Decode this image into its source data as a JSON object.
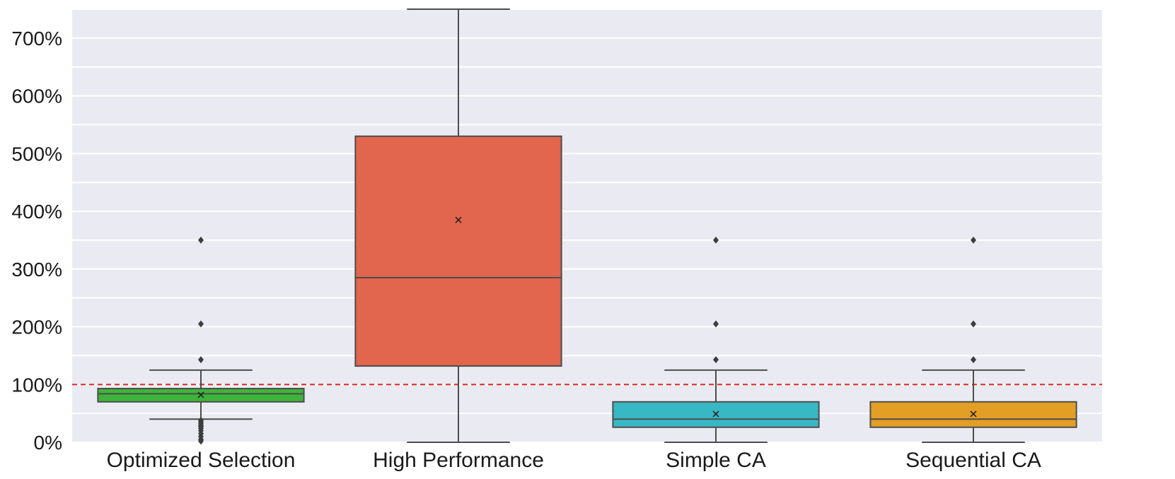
{
  "chart_data": {
    "type": "box",
    "title": "",
    "xlabel": "",
    "ylabel": "",
    "ylim": [
      0,
      750
    ],
    "yticks": [
      0,
      100,
      200,
      300,
      400,
      500,
      600,
      700
    ],
    "ytick_labels": [
      "0%",
      "100%",
      "200%",
      "300%",
      "400%",
      "500%",
      "600%",
      "700%"
    ],
    "grid": true,
    "reference_line": {
      "value": 100,
      "color": "#e0242a",
      "style": "dashed"
    },
    "categories": [
      "Optimized Selection",
      "High Performance",
      "Simple CA",
      "Sequential CA"
    ],
    "boxes": [
      {
        "category": "Optimized Selection",
        "color": "#3cb53a",
        "whisker_low": 40,
        "q1": 70,
        "median": 84,
        "q3": 93,
        "whisker_high": 125,
        "mean": 82,
        "outliers": [
          143,
          205,
          350,
          38,
          35,
          32,
          29,
          27,
          24,
          20,
          15,
          10,
          5,
          2
        ]
      },
      {
        "category": "High Performance",
        "color": "#e2654e",
        "whisker_low": 0,
        "q1": 132,
        "median": 285,
        "q3": 530,
        "whisker_high": 750,
        "mean": 385,
        "outliers": []
      },
      {
        "category": "Simple CA",
        "color": "#38b8c4",
        "whisker_low": 0,
        "q1": 26,
        "median": 40,
        "q3": 70,
        "whisker_high": 125,
        "mean": 49,
        "outliers": [
          143,
          205,
          350
        ]
      },
      {
        "category": "Sequential CA",
        "color": "#e39e26",
        "whisker_low": 0,
        "q1": 26,
        "median": 40,
        "q3": 70,
        "whisker_high": 125,
        "mean": 49,
        "outliers": [
          143,
          205,
          350
        ]
      }
    ]
  }
}
